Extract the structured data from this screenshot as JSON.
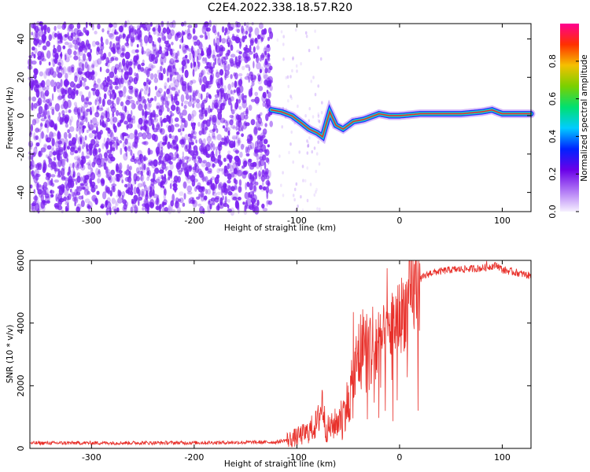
{
  "title": "C2E4.2022.338.18.57.R20",
  "colors": {
    "snr_line": "#e8302a",
    "speckle": "#7a1ff0",
    "ridge_core": "#e8302a",
    "ridge_halo": "#11d0c8"
  },
  "chart_data": [
    {
      "type": "heatmap",
      "name": "spectrogram",
      "xlabel": "Height of straight line (km)",
      "ylabel": "Frequency (Hz)",
      "xlim": [
        -360,
        128
      ],
      "ylim": [
        -50,
        48
      ],
      "x_ticks": [
        -300,
        -200,
        -100,
        0,
        100
      ],
      "y_ticks": [
        -40,
        -20,
        0,
        20,
        40
      ],
      "grid": false,
      "colorbar": {
        "label": "Normalized spectral amplitude",
        "range": [
          0,
          1
        ],
        "ticks": [
          0.0,
          0.2,
          0.4,
          0.6,
          0.8
        ],
        "tick_labels": [
          "0.0",
          "0.2",
          "0.4",
          "0.6",
          "0.8"
        ],
        "colormap": [
          "#f6f0ff",
          "#b077f5",
          "#6a00e8",
          "#0022ff",
          "#00ccff",
          "#00e070",
          "#7ad000",
          "#f5c000",
          "#ff3000",
          "#ff0090"
        ]
      },
      "ridge": {
        "x": [
          -125,
          -115,
          -105,
          -95,
          -88,
          -80,
          -75,
          -68,
          -62,
          -55,
          -45,
          -35,
          -20,
          -10,
          0,
          20,
          40,
          60,
          80,
          90,
          100,
          110,
          128
        ],
        "y": [
          3,
          2,
          0,
          -4,
          -7,
          -9,
          -11,
          2,
          -5,
          -7,
          -3,
          -2,
          1,
          0,
          0,
          1,
          1,
          1,
          2,
          3,
          1,
          1,
          1
        ]
      }
    },
    {
      "type": "line",
      "name": "snr",
      "xlabel": "Height of straight line (km)",
      "ylabel": "SNR (10 * v/v)",
      "xlim": [
        -360,
        128
      ],
      "ylim": [
        0,
        6000
      ],
      "x_ticks": [
        -300,
        -200,
        -100,
        0,
        100
      ],
      "y_ticks": [
        0,
        2000,
        4000,
        6000
      ],
      "grid": false,
      "trend": {
        "x": [
          -360,
          -200,
          -120,
          -105,
          -90,
          -80,
          -75,
          -72,
          -65,
          -55,
          -45,
          -40,
          -30,
          -20,
          -10,
          0,
          10,
          20,
          30,
          50,
          80,
          95,
          100,
          115,
          128
        ],
        "y": [
          170,
          180,
          200,
          300,
          500,
          800,
          1500,
          600,
          700,
          1100,
          2000,
          3000,
          3200,
          3300,
          3800,
          4200,
          4700,
          5400,
          5600,
          5700,
          5750,
          5850,
          5700,
          5600,
          5500
        ]
      },
      "spikes": [
        {
          "x": -75,
          "y": 1800
        },
        {
          "x": -45,
          "y": 4350
        },
        {
          "x": -35,
          "y": 4200
        },
        {
          "x": -12,
          "y": 5750
        },
        {
          "x": 85,
          "y": 5980
        }
      ]
    }
  ]
}
